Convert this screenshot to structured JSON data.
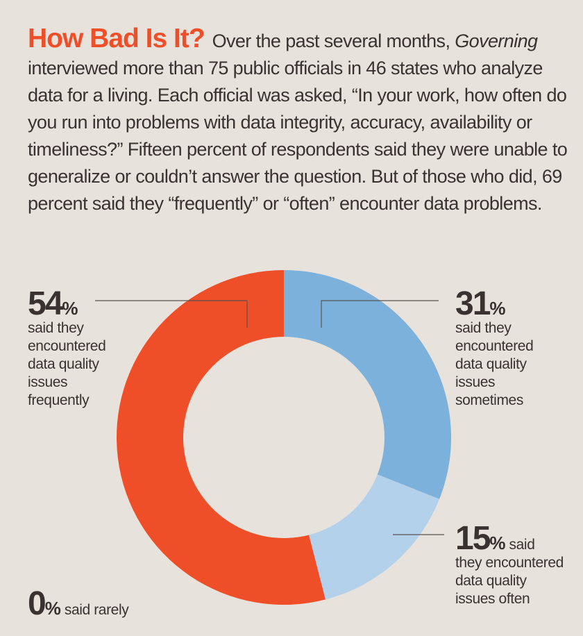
{
  "header": {
    "title": "How Bad Is It?",
    "intro_pre": "Over the past several months, ",
    "intro_em": "Governing",
    "intro_post": " interviewed more than 75 public officials in 46 states who analyze data for a living. Each official was asked, “In your work, how often do you run into problems with data integrity, accuracy, availability or timeliness?” Fifteen percent of respondents said they were unable to generalize or couldn’t answer the question. But of those who did, 69 percent said they “frequently” or “often” encounter data problems."
  },
  "chart_data": {
    "type": "pie",
    "donut": true,
    "categories": [
      "frequently",
      "sometimes",
      "often",
      "rarely"
    ],
    "values": [
      54,
      31,
      15,
      0
    ],
    "colors": [
      "#ef4f28",
      "#7bb1da",
      "#b3d1ea",
      "#000000"
    ],
    "labels": [
      {
        "value": "54",
        "unit": "%",
        "lines": [
          "said they",
          "encountered",
          "data quality",
          "issues",
          "frequently"
        ]
      },
      {
        "value": "31",
        "unit": "%",
        "lines": [
          "said they",
          "encountered",
          "data quality",
          "issues",
          "sometimes"
        ]
      },
      {
        "value": "15",
        "unit": "%",
        "inline": " said",
        "lines": [
          "they encountered",
          "data quality",
          "issues often"
        ]
      },
      {
        "value": "0",
        "unit": "%",
        "inline": " said rarely",
        "lines": []
      }
    ]
  }
}
